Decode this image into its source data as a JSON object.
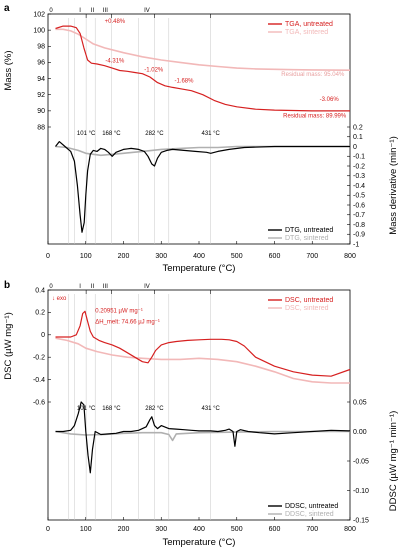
{
  "chart_data": [
    {
      "panel": "a",
      "type": "line",
      "xlabel": "Temperature (°C)",
      "xlim": [
        0,
        800
      ],
      "x_ticks": [
        0,
        100,
        200,
        300,
        400,
        500,
        600,
        700,
        800
      ],
      "stage_markers": [
        "0",
        "I",
        "II",
        "III",
        "IV"
      ],
      "temperature_markers": [
        "101 °C",
        "168 °C",
        "282 °C",
        "431 °C"
      ],
      "temperature_marker_values": [
        101,
        168,
        282,
        431
      ],
      "top": {
        "ylabel": "Mass (%)",
        "ylim": [
          88,
          102
        ],
        "y_ticks": [
          88,
          90,
          92,
          94,
          96,
          98,
          100,
          102
        ],
        "series": [
          {
            "name": "TGA, untreated",
            "color": "#d62020",
            "x": [
              20,
              40,
              60,
              75,
              85,
              95,
              105,
              115,
              130,
              150,
              170,
              190,
              210,
              230,
              250,
              270,
              290,
              310,
              330,
              350,
              380,
              410,
              440,
              470,
              500,
              550,
              600,
              650,
              700,
              750,
              800
            ],
            "y": [
              100.2,
              100.5,
              100.5,
              100.3,
              99.6,
              97.8,
              96.3,
              95.9,
              95.8,
              95.6,
              95.3,
              95.0,
              94.9,
              94.75,
              94.6,
              94.2,
              93.5,
              93.1,
              92.9,
              92.75,
              92.5,
              92.0,
              91.3,
              90.8,
              90.5,
              90.2,
              90.1,
              90.05,
              90.0,
              89.99,
              89.99
            ]
          },
          {
            "name": "TGA, sintered",
            "color": "#f2b8b8",
            "x": [
              20,
              40,
              60,
              80,
              100,
              120,
              150,
              200,
              250,
              300,
              350,
              400,
              450,
              500,
              550,
              600,
              650,
              700,
              750,
              800
            ],
            "y": [
              100.1,
              100.1,
              99.9,
              99.5,
              98.9,
              98.3,
              97.8,
              97.2,
              96.7,
              96.3,
              96.0,
              95.7,
              95.5,
              95.3,
              95.2,
              95.15,
              95.1,
              95.07,
              95.05,
              95.04
            ]
          }
        ],
        "annotations": [
          {
            "text": "+0.48%",
            "x": 150,
            "y": 100.9,
            "color": "#d62020"
          },
          {
            "text": "-4.31%",
            "x": 152,
            "y": 96.0,
            "color": "#d62020"
          },
          {
            "text": "-1.02%",
            "x": 255,
            "y": 94.9,
            "color": "#d62020"
          },
          {
            "text": "-1.68%",
            "x": 335,
            "y": 93.5,
            "color": "#d62020"
          },
          {
            "text": "-3.06%",
            "x": 770,
            "y": 91.2,
            "color": "#d62020"
          },
          {
            "text": "Residual mass: 95.04%",
            "x": 785,
            "y": 94.3,
            "color": "#e8a0a0"
          },
          {
            "text": "Residual mass: 89.99%",
            "x": 790,
            "y": 89.2,
            "color": "#d62020"
          }
        ]
      },
      "bottom": {
        "ylabel": "Mass derivative (min⁻¹)",
        "ylim": [
          -1.0,
          0.2
        ],
        "y_ticks": [
          -1.0,
          -0.9,
          -0.8,
          -0.7,
          -0.6,
          -0.5,
          -0.4,
          -0.3,
          -0.2,
          -0.1,
          0.0,
          0.1,
          0.2
        ],
        "series": [
          {
            "name": "DTG, untreated",
            "color": "#000000",
            "x": [
              20,
              30,
              45,
              60,
              70,
              78,
              85,
              90,
              96,
              100,
              105,
              112,
              120,
              130,
              140,
              150,
              160,
              170,
              180,
              200,
              220,
              240,
              255,
              265,
              275,
              282,
              290,
              300,
              315,
              330,
              360,
              390,
              420,
              431,
              450,
              480,
              520,
              600,
              700,
              800
            ],
            "y": [
              0.0,
              0.05,
              0.0,
              -0.05,
              -0.15,
              -0.4,
              -0.7,
              -0.88,
              -0.78,
              -0.5,
              -0.25,
              -0.08,
              -0.04,
              -0.05,
              -0.02,
              -0.03,
              -0.06,
              -0.1,
              -0.06,
              -0.03,
              -0.02,
              -0.03,
              -0.05,
              -0.1,
              -0.18,
              -0.2,
              -0.12,
              -0.06,
              -0.04,
              -0.03,
              -0.04,
              -0.05,
              -0.06,
              -0.07,
              -0.05,
              -0.03,
              -0.01,
              0.0,
              0.0,
              0.0
            ]
          },
          {
            "name": "DTG, sintered",
            "color": "#b0b0b0",
            "x": [
              20,
              50,
              80,
              100,
              140,
              200,
              250,
              300,
              350,
              400,
              450,
              500,
              600,
              700,
              800
            ],
            "y": [
              0.0,
              -0.01,
              -0.04,
              -0.07,
              -0.09,
              -0.07,
              -0.05,
              -0.03,
              -0.02,
              -0.01,
              -0.01,
              0.0,
              0.0,
              0.0,
              0.0
            ]
          }
        ]
      }
    },
    {
      "panel": "b",
      "type": "line",
      "xlabel": "Temperature (°C)",
      "xlim": [
        0,
        800
      ],
      "x_ticks": [
        0,
        100,
        200,
        300,
        400,
        500,
        600,
        700,
        800
      ],
      "stage_markers": [
        "0",
        "I",
        "II",
        "III",
        "IV"
      ],
      "temperature_markers": [
        "101 °C",
        "168 °C",
        "282 °C",
        "431 °C"
      ],
      "temperature_marker_values": [
        101,
        168,
        282,
        431
      ],
      "exo_label": "exo",
      "top": {
        "ylabel": "DSC (µW mg⁻¹)",
        "ylim": [
          -0.6,
          0.4
        ],
        "y_ticks": [
          -0.6,
          -0.4,
          -0.2,
          0.0,
          0.2,
          0.4
        ],
        "series": [
          {
            "name": "DSC, untreated",
            "color": "#d62020",
            "x": [
              20,
              40,
              60,
              75,
              85,
              92,
              98,
              105,
              112,
              120,
              135,
              150,
              170,
              190,
              210,
              230,
              250,
              265,
              275,
              285,
              300,
              320,
              340,
              370,
              400,
              430,
              460,
              480,
              500,
              520,
              550,
              600,
              650,
              700,
              750,
              800
            ],
            "y": [
              -0.02,
              -0.02,
              -0.02,
              0.0,
              0.08,
              0.19,
              0.21,
              0.12,
              0.03,
              -0.02,
              -0.05,
              -0.07,
              -0.09,
              -0.12,
              -0.16,
              -0.2,
              -0.24,
              -0.25,
              -0.2,
              -0.14,
              -0.09,
              -0.07,
              -0.06,
              -0.05,
              -0.045,
              -0.04,
              -0.04,
              -0.045,
              -0.06,
              -0.1,
              -0.2,
              -0.28,
              -0.33,
              -0.36,
              -0.37,
              -0.31
            ]
          },
          {
            "name": "DSC, sintered",
            "color": "#f2b8b8",
            "x": [
              20,
              50,
              80,
              100,
              130,
              170,
              210,
              250,
              300,
              350,
              400,
              450,
              500,
              550,
              600,
              650,
              700,
              750,
              800
            ],
            "y": [
              -0.03,
              -0.05,
              -0.08,
              -0.12,
              -0.15,
              -0.18,
              -0.2,
              -0.21,
              -0.22,
              -0.22,
              -0.21,
              -0.22,
              -0.24,
              -0.28,
              -0.33,
              -0.39,
              -0.42,
              -0.43,
              -0.43
            ]
          }
        ],
        "annotations": [
          {
            "text": "0.20951 µW mg⁻¹",
            "x": 125,
            "y": 0.2,
            "color": "#d62020"
          },
          {
            "text": "ΔH_melt: 74.66 µJ mg⁻¹",
            "x": 125,
            "y": 0.1,
            "color": "#d62020"
          }
        ]
      },
      "bottom": {
        "ylabel": "DDSC (µW mg⁻¹ min⁻¹)",
        "ylim": [
          -0.15,
          0.05
        ],
        "y_ticks": [
          -0.15,
          -0.1,
          -0.05,
          0.0,
          0.05
        ],
        "series": [
          {
            "name": "DDSC, untreated",
            "color": "#000000",
            "x": [
              20,
              40,
              60,
              70,
              80,
              88,
              95,
              100,
              106,
              112,
              118,
              125,
              140,
              160,
              180,
              200,
              220,
              240,
              260,
              270,
              275,
              282,
              290,
              300,
              320,
              340,
              360,
              380,
              400,
              431,
              450,
              470,
              480,
              490,
              495,
              500,
              510,
              530,
              560,
              600,
              650,
              700,
              750,
              800
            ],
            "y": [
              0.0,
              0.0,
              0.002,
              0.01,
              0.03,
              0.05,
              0.045,
              0.0,
              -0.04,
              -0.07,
              -0.03,
              0.0,
              -0.005,
              -0.004,
              -0.003,
              0.0,
              0.0,
              0.002,
              0.008,
              0.02,
              0.025,
              0.01,
              0.005,
              0.01,
              0.005,
              0.004,
              0.003,
              0.002,
              0.001,
              0.001,
              0.0,
              0.002,
              0.004,
              0.0,
              -0.025,
              0.0,
              0.003,
              0.0,
              -0.002,
              -0.004,
              -0.002,
              0.0,
              0.002,
              0.001
            ]
          },
          {
            "name": "DDSC, sintered",
            "color": "#b0b0b0",
            "x": [
              20,
              60,
              100,
              150,
              200,
              250,
              300,
              320,
              330,
              340,
              400,
              500,
              600,
              700,
              800
            ],
            "y": [
              0.0,
              -0.004,
              -0.006,
              -0.005,
              -0.003,
              -0.002,
              -0.002,
              -0.005,
              -0.015,
              -0.004,
              -0.002,
              -0.001,
              0.0,
              0.0,
              0.0
            ]
          }
        ]
      }
    }
  ]
}
